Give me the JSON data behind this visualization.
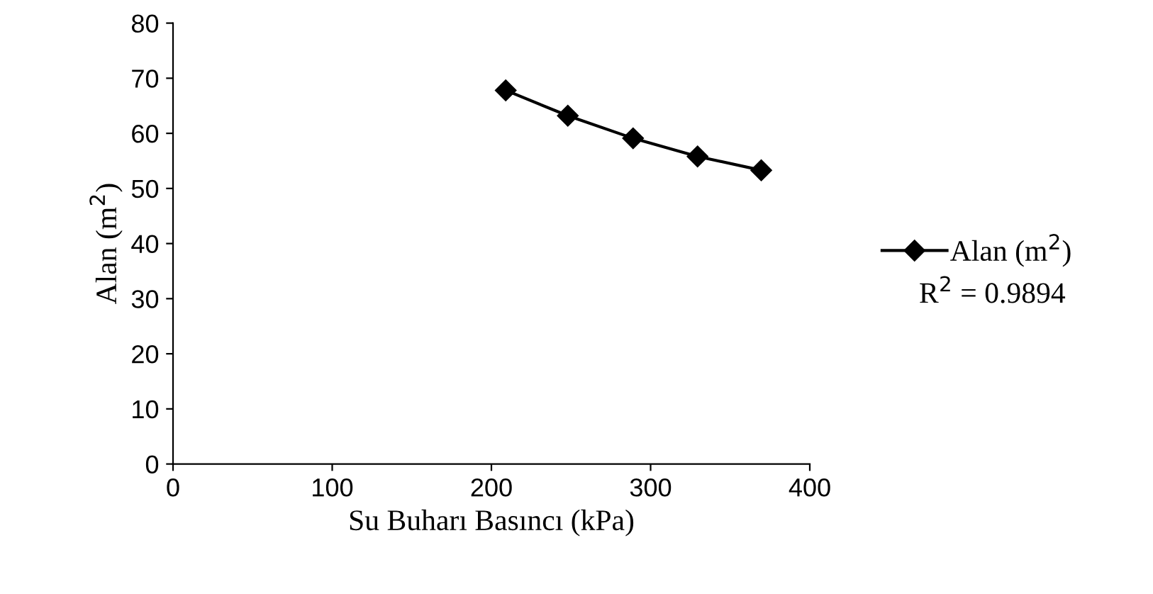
{
  "chart_data": {
    "type": "line",
    "xlabel": "Su Buharı Basıncı (kPa)",
    "ylabel": "Alan (m$^{2}$)",
    "x": [
      209,
      248,
      289,
      329.5,
      369.5
    ],
    "series": [
      {
        "name": "Alan (m$^{2}$)",
        "color": "#000000",
        "values": [
          67.8,
          63.2,
          59.1,
          55.8,
          53.3
        ]
      }
    ],
    "xlim": [
      0,
      400
    ],
    "xticks": [
      0,
      100,
      200,
      300,
      400
    ],
    "ylim": [
      0,
      80
    ],
    "yticks": [
      0,
      10,
      20,
      30,
      40,
      50,
      60,
      70,
      80
    ],
    "marker": "diamond",
    "line_style": "solid",
    "legend": "right",
    "grid": false,
    "annotations": [
      "R$^{2}$ = 0.9894"
    ]
  }
}
